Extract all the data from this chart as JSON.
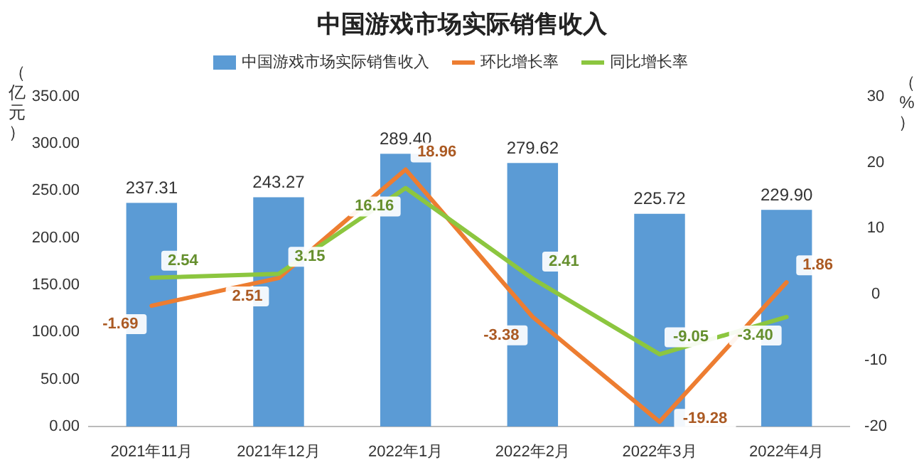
{
  "chart_data": {
    "type": "bar",
    "title": "中国游戏市场实际销售收入",
    "ylabel": "（亿元）",
    "y2label": "（%）",
    "categories": [
      "2021年11月",
      "2021年12月",
      "2022年1月",
      "2022年2月",
      "2022年3月",
      "2022年4月"
    ],
    "series": [
      {
        "name": "中国游戏市场实际销售收入",
        "color": "#5b9bd5",
        "values": [
          237.31,
          243.27,
          289.4,
          279.62,
          225.72,
          229.9
        ],
        "value_labels": [
          "237.31",
          "243.27",
          "289.40",
          "279.62",
          "225.72",
          "229.90"
        ]
      },
      {
        "name": "环比增长率",
        "type": "line",
        "axis": "y2",
        "color": "#ed7d31",
        "values": [
          -1.69,
          2.51,
          18.96,
          -3.38,
          -19.28,
          1.86
        ],
        "value_labels": [
          "-1.69",
          "2.51",
          "18.96",
          "-3.38",
          "-19.28",
          "1.86"
        ]
      },
      {
        "name": "同比增长率",
        "type": "line",
        "axis": "y2",
        "color": "#8cc63f",
        "values": [
          2.54,
          3.15,
          16.16,
          2.41,
          -9.05,
          -3.4
        ],
        "value_labels": [
          "2.54",
          "3.15",
          "16.16",
          "2.41",
          "-9.05",
          "-3.40"
        ]
      }
    ],
    "ylim": [
      0,
      350
    ],
    "yticks": [
      {
        "value": 0,
        "label": "0.00"
      },
      {
        "value": 50,
        "label": "50.00"
      },
      {
        "value": 100,
        "label": "100.00"
      },
      {
        "value": 150,
        "label": "150.00"
      },
      {
        "value": 200,
        "label": "200.00"
      },
      {
        "value": 250,
        "label": "250.00"
      },
      {
        "value": 300,
        "label": "300.00"
      },
      {
        "value": 350,
        "label": "350.00"
      }
    ],
    "y2lim": [
      -20,
      30
    ],
    "y2ticks": [
      -20,
      -10,
      0,
      10,
      20,
      30
    ],
    "legend": "top",
    "grid": false,
    "marker": "none"
  }
}
